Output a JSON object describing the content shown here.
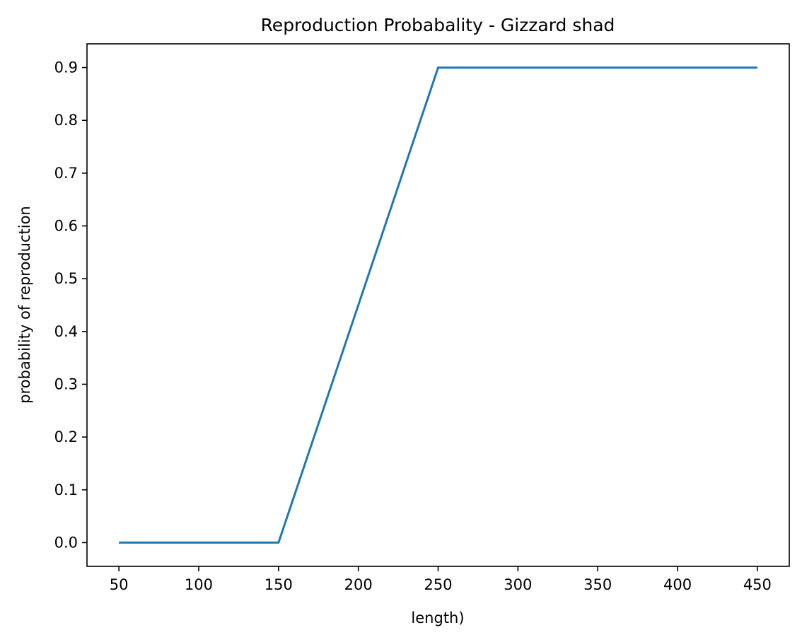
{
  "chart_data": {
    "type": "line",
    "title": "Reproduction Probabality - Gizzard shad",
    "xlabel": "length)",
    "ylabel": "probability of reproduction",
    "xlim": [
      30,
      470
    ],
    "ylim": [
      -0.045,
      0.945
    ],
    "xticks": [
      50,
      100,
      150,
      200,
      250,
      300,
      350,
      400,
      450
    ],
    "yticks": [
      0.0,
      0.1,
      0.2,
      0.3,
      0.4,
      0.5,
      0.6,
      0.7,
      0.8,
      0.9
    ],
    "xtick_labels": [
      "50",
      "100",
      "150",
      "200",
      "250",
      "300",
      "350",
      "400",
      "450"
    ],
    "ytick_labels": [
      "0.0",
      "0.1",
      "0.2",
      "0.3",
      "0.4",
      "0.5",
      "0.6",
      "0.7",
      "0.8",
      "0.9"
    ],
    "grid": false,
    "series": [
      {
        "color": "#1f77b4",
        "x": [
          50,
          150,
          250,
          450
        ],
        "y": [
          0.0,
          0.0,
          0.9,
          0.9
        ]
      }
    ]
  }
}
